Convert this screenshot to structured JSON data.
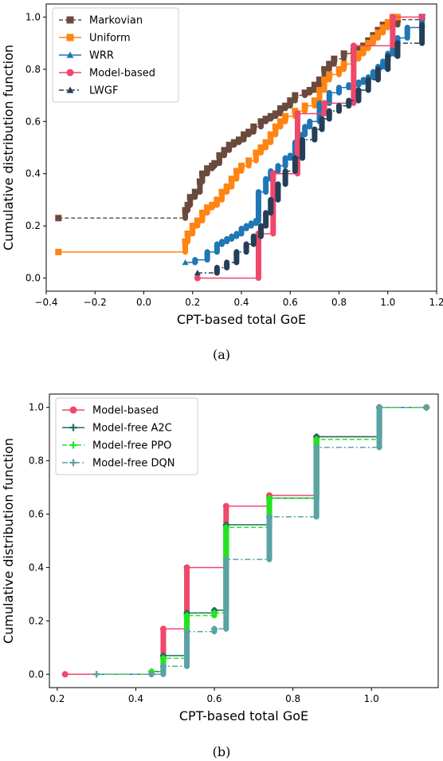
{
  "figures": [
    {
      "caption": "(a)",
      "legend_position": "upper-left",
      "chart_data": {
        "type": "line",
        "step": true,
        "xlabel": "CPT-based total GoE",
        "ylabel": "Cumulative distribution function",
        "xlim": [
          -0.4,
          1.2
        ],
        "ylim": [
          -0.05,
          1.05
        ],
        "xticks": [
          -0.4,
          -0.2,
          0.0,
          0.2,
          0.4,
          0.6,
          0.8,
          1.0,
          1.2
        ],
        "xtick_labels": [
          "−0.4",
          "−0.2",
          "0.0",
          "0.2",
          "0.4",
          "0.6",
          "0.8",
          "1.0",
          "1.2"
        ],
        "yticks": [
          0.0,
          0.2,
          0.4,
          0.6,
          0.8,
          1.0
        ],
        "ytick_labels": [
          "0.0",
          "0.2",
          "0.4",
          "0.6",
          "0.8",
          "1.0"
        ],
        "grid": false,
        "series": [
          {
            "name": "Markovian",
            "color": "#6b4a3e",
            "dash": "5,3",
            "marker": "square",
            "x": [
              -0.35,
              0.17,
              0.18,
              0.19,
              0.21,
              0.23,
              0.24,
              0.26,
              0.28,
              0.29,
              0.31,
              0.33,
              0.35,
              0.37,
              0.39,
              0.41,
              0.43,
              0.45,
              0.48,
              0.5,
              0.52,
              0.54,
              0.56,
              0.58,
              0.6,
              0.62,
              0.66,
              0.68,
              0.7,
              0.72,
              0.74,
              0.76,
              0.78,
              0.82,
              0.86,
              0.88,
              0.9,
              0.92,
              0.94,
              0.96,
              0.98,
              1.04,
              1.14
            ],
            "y": [
              0.23,
              0.26,
              0.28,
              0.31,
              0.33,
              0.37,
              0.4,
              0.42,
              0.43,
              0.44,
              0.47,
              0.49,
              0.51,
              0.52,
              0.53,
              0.55,
              0.56,
              0.58,
              0.6,
              0.61,
              0.62,
              0.63,
              0.65,
              0.66,
              0.68,
              0.7,
              0.71,
              0.72,
              0.74,
              0.76,
              0.8,
              0.82,
              0.84,
              0.86,
              0.87,
              0.88,
              0.89,
              0.91,
              0.93,
              0.95,
              0.97,
              0.99,
              1.0
            ]
          },
          {
            "name": "Uniform",
            "color": "#ff8412",
            "dash": "",
            "marker": "square",
            "x": [
              -0.35,
              0.17,
              0.18,
              0.2,
              0.22,
              0.24,
              0.26,
              0.28,
              0.3,
              0.32,
              0.34,
              0.36,
              0.38,
              0.4,
              0.43,
              0.46,
              0.48,
              0.5,
              0.52,
              0.54,
              0.56,
              0.58,
              0.62,
              0.66,
              0.7,
              0.72,
              0.74,
              0.76,
              0.8,
              0.82,
              0.86,
              0.88,
              0.9,
              0.92,
              0.94,
              0.96,
              0.98,
              1.0,
              1.02,
              1.04
            ],
            "y": [
              0.1,
              0.14,
              0.17,
              0.2,
              0.22,
              0.25,
              0.27,
              0.28,
              0.3,
              0.33,
              0.35,
              0.38,
              0.41,
              0.43,
              0.45,
              0.48,
              0.5,
              0.52,
              0.55,
              0.58,
              0.6,
              0.62,
              0.64,
              0.66,
              0.68,
              0.72,
              0.76,
              0.78,
              0.8,
              0.82,
              0.84,
              0.86,
              0.88,
              0.9,
              0.92,
              0.94,
              0.96,
              0.98,
              1.0,
              1.0
            ]
          },
          {
            "name": "WRR",
            "color": "#1f77b4",
            "dash": "",
            "marker": "triangle",
            "x": [
              0.17,
              0.21,
              0.26,
              0.3,
              0.32,
              0.34,
              0.36,
              0.38,
              0.4,
              0.42,
              0.44,
              0.46,
              0.47,
              0.5,
              0.52,
              0.55,
              0.58,
              0.6,
              0.62,
              0.64,
              0.66,
              0.68,
              0.72,
              0.76,
              0.8,
              0.84,
              0.88,
              0.9,
              0.92,
              0.94,
              0.96,
              0.98,
              1.0,
              1.02,
              1.04,
              1.08,
              1.14
            ],
            "y": [
              0.06,
              0.07,
              0.1,
              0.13,
              0.14,
              0.15,
              0.16,
              0.17,
              0.19,
              0.2,
              0.21,
              0.22,
              0.33,
              0.38,
              0.41,
              0.43,
              0.46,
              0.47,
              0.52,
              0.55,
              0.58,
              0.6,
              0.67,
              0.71,
              0.73,
              0.74,
              0.75,
              0.76,
              0.77,
              0.79,
              0.81,
              0.83,
              0.86,
              0.88,
              0.92,
              0.96,
              1.0
            ]
          },
          {
            "name": "Model-based",
            "color": "#f0476a",
            "dash": "",
            "marker": "circle",
            "x": [
              0.22,
              0.47,
              0.53,
              0.63,
              0.74,
              0.86,
              1.02,
              1.14
            ],
            "y": [
              0.0,
              0.17,
              0.4,
              0.63,
              0.67,
              0.89,
              1.0,
              1.0
            ]
          },
          {
            "name": "LWGF",
            "color": "#243f57",
            "dash": "6,3,2,3",
            "marker": "triangle",
            "x": [
              0.22,
              0.3,
              0.34,
              0.38,
              0.42,
              0.45,
              0.48,
              0.5,
              0.52,
              0.55,
              0.58,
              0.62,
              0.65,
              0.7,
              0.73,
              0.76,
              0.8,
              0.84,
              0.88,
              0.92,
              0.96,
              1.0,
              1.04,
              1.14
            ],
            "y": [
              0.02,
              0.04,
              0.06,
              0.1,
              0.13,
              0.16,
              0.2,
              0.25,
              0.3,
              0.36,
              0.41,
              0.46,
              0.53,
              0.57,
              0.61,
              0.64,
              0.66,
              0.68,
              0.72,
              0.76,
              0.8,
              0.85,
              0.9,
              0.97
            ]
          }
        ]
      }
    },
    {
      "caption": "(b)",
      "legend_position": "upper-left",
      "chart_data": {
        "type": "line",
        "step": true,
        "xlabel": "CPT-based total GoE",
        "ylabel": "Cumulative distribution function",
        "xlim": [
          0.18,
          1.17
        ],
        "ylim": [
          -0.05,
          1.05
        ],
        "xticks": [
          0.2,
          0.4,
          0.6,
          0.8,
          1.0
        ],
        "xtick_labels": [
          "0.2",
          "0.4",
          "0.6",
          "0.8",
          "1.0"
        ],
        "yticks": [
          0.0,
          0.2,
          0.4,
          0.6,
          0.8,
          1.0
        ],
        "ytick_labels": [
          "0.0",
          "0.2",
          "0.4",
          "0.6",
          "0.8",
          "1.0"
        ],
        "grid": false,
        "series": [
          {
            "name": "Model-based",
            "color": "#f0476a",
            "dash": "",
            "marker": "circle",
            "x": [
              0.22,
              0.47,
              0.53,
              0.63,
              0.74,
              0.86,
              1.02,
              1.14
            ],
            "y": [
              0.0,
              0.17,
              0.4,
              0.63,
              0.67,
              0.89,
              1.0,
              1.0
            ]
          },
          {
            "name": "Model-free A2C",
            "color": "#1f6e63",
            "dash": "",
            "marker": "plus",
            "x": [
              0.3,
              0.44,
              0.47,
              0.53,
              0.6,
              0.63,
              0.74,
              0.86,
              1.02,
              1.14
            ],
            "y": [
              0.0,
              0.01,
              0.07,
              0.23,
              0.24,
              0.56,
              0.66,
              0.89,
              1.0,
              1.0
            ]
          },
          {
            "name": "Model-free PPO",
            "color": "#22e51f",
            "dash": "6,3",
            "marker": "plus",
            "x": [
              0.3,
              0.44,
              0.47,
              0.53,
              0.6,
              0.63,
              0.74,
              0.86,
              1.02,
              1.14
            ],
            "y": [
              0.0,
              0.01,
              0.06,
              0.22,
              0.23,
              0.55,
              0.66,
              0.88,
              1.0,
              1.0
            ]
          },
          {
            "name": "Model-free DQN",
            "color": "#5aa3a5",
            "dash": "7,3,2,3",
            "marker": "plus",
            "x": [
              0.3,
              0.44,
              0.47,
              0.53,
              0.6,
              0.63,
              0.74,
              0.86,
              1.02,
              1.14
            ],
            "y": [
              0.0,
              0.0,
              0.03,
              0.16,
              0.17,
              0.43,
              0.59,
              0.85,
              1.0,
              1.0
            ]
          }
        ]
      }
    }
  ]
}
